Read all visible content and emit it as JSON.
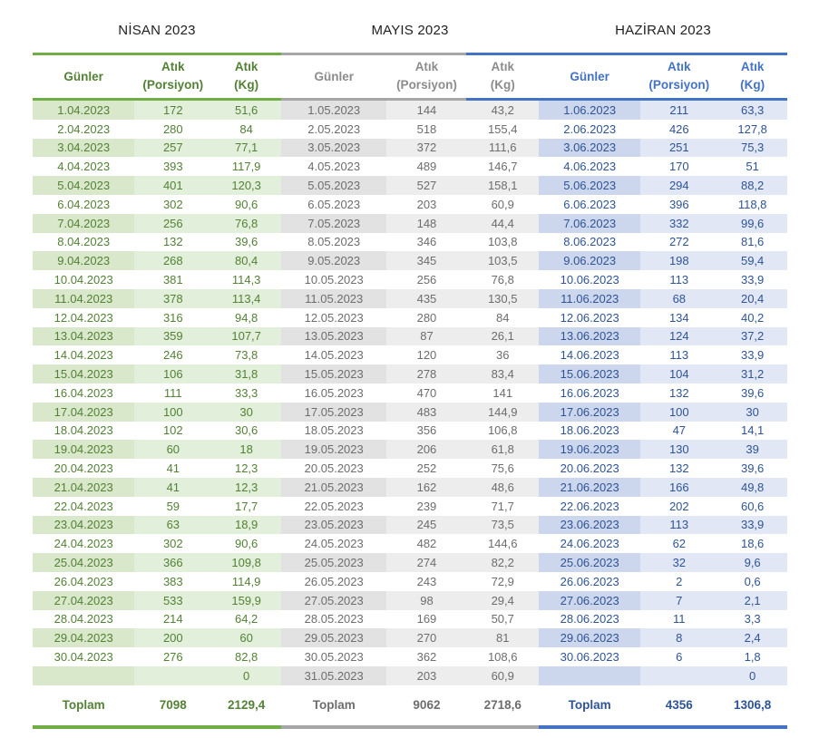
{
  "months": [
    {
      "title": "NİSAN 2023",
      "colors": {
        "border": "#70ad47",
        "header_text": "#538135",
        "data_text": "#538135",
        "stripe_day": "#d9e7cb",
        "stripe_value": "#e2efda"
      },
      "headers": {
        "days": "Günler",
        "waste": "Atık",
        "portion_unit": "(Porsiyon)",
        "kg_unit": "(Kg)"
      },
      "rows": [
        [
          "1.04.2023",
          "172",
          "51,6"
        ],
        [
          "2.04.2023",
          "280",
          "84"
        ],
        [
          "3.04.2023",
          "257",
          "77,1"
        ],
        [
          "4.04.2023",
          "393",
          "117,9"
        ],
        [
          "5.04.2023",
          "401",
          "120,3"
        ],
        [
          "6.04.2023",
          "302",
          "90,6"
        ],
        [
          "7.04.2023",
          "256",
          "76,8"
        ],
        [
          "8.04.2023",
          "132",
          "39,6"
        ],
        [
          "9.04.2023",
          "268",
          "80,4"
        ],
        [
          "10.04.2023",
          "381",
          "114,3"
        ],
        [
          "11.04.2023",
          "378",
          "113,4"
        ],
        [
          "12.04.2023",
          "316",
          "94,8"
        ],
        [
          "13.04.2023",
          "359",
          "107,7"
        ],
        [
          "14.04.2023",
          "246",
          "73,8"
        ],
        [
          "15.04.2023",
          "106",
          "31,8"
        ],
        [
          "16.04.2023",
          "111",
          "33,3"
        ],
        [
          "17.04.2023",
          "100",
          "30"
        ],
        [
          "18.04.2023",
          "102",
          "30,6"
        ],
        [
          "19.04.2023",
          "60",
          "18"
        ],
        [
          "20.04.2023",
          "41",
          "12,3"
        ],
        [
          "21.04.2023",
          "41",
          "12,3"
        ],
        [
          "22.04.2023",
          "59",
          "17,7"
        ],
        [
          "23.04.2023",
          "63",
          "18,9"
        ],
        [
          "24.04.2023",
          "302",
          "90,6"
        ],
        [
          "25.04.2023",
          "366",
          "109,8"
        ],
        [
          "26.04.2023",
          "383",
          "114,9"
        ],
        [
          "27.04.2023",
          "533",
          "159,9"
        ],
        [
          "28.04.2023",
          "214",
          "64,2"
        ],
        [
          "29.04.2023",
          "200",
          "60"
        ],
        [
          "30.04.2023",
          "276",
          "82,8"
        ],
        [
          "",
          "",
          "0"
        ]
      ],
      "total": {
        "label": "Toplam",
        "portion": "7098",
        "kg": "2129,4"
      }
    },
    {
      "title": "MAYIS 2023",
      "colors": {
        "border": "#a6a6a6",
        "header_text": "#8c8c8c",
        "data_text": "#6d6d6d",
        "stripe_day": "#e2e2e2",
        "stripe_value": "#ededed"
      },
      "headers": {
        "days": "Günler",
        "waste": "Atık",
        "portion_unit": "(Porsiyon)",
        "kg_unit": "(Kg)"
      },
      "rows": [
        [
          "1.05.2023",
          "144",
          "43,2"
        ],
        [
          "2.05.2023",
          "518",
          "155,4"
        ],
        [
          "3.05.2023",
          "372",
          "111,6"
        ],
        [
          "4.05.2023",
          "489",
          "146,7"
        ],
        [
          "5.05.2023",
          "527",
          "158,1"
        ],
        [
          "6.05.2023",
          "203",
          "60,9"
        ],
        [
          "7.05.2023",
          "148",
          "44,4"
        ],
        [
          "8.05.2023",
          "346",
          "103,8"
        ],
        [
          "9.05.2023",
          "345",
          "103,5"
        ],
        [
          "10.05.2023",
          "256",
          "76,8"
        ],
        [
          "11.05.2023",
          "435",
          "130,5"
        ],
        [
          "12.05.2023",
          "280",
          "84"
        ],
        [
          "13.05.2023",
          "87",
          "26,1"
        ],
        [
          "14.05.2023",
          "120",
          "36"
        ],
        [
          "15.05.2023",
          "278",
          "83,4"
        ],
        [
          "16.05.2023",
          "470",
          "141"
        ],
        [
          "17.05.2023",
          "483",
          "144,9"
        ],
        [
          "18.05.2023",
          "356",
          "106,8"
        ],
        [
          "19.05.2023",
          "206",
          "61,8"
        ],
        [
          "20.05.2023",
          "252",
          "75,6"
        ],
        [
          "21.05.2023",
          "162",
          "48,6"
        ],
        [
          "22.05.2023",
          "239",
          "71,7"
        ],
        [
          "23.05.2023",
          "245",
          "73,5"
        ],
        [
          "24.05.2023",
          "482",
          "144,6"
        ],
        [
          "25.05.2023",
          "274",
          "82,2"
        ],
        [
          "26.05.2023",
          "243",
          "72,9"
        ],
        [
          "27.05.2023",
          "98",
          "29,4"
        ],
        [
          "28.05.2023",
          "169",
          "50,7"
        ],
        [
          "29.05.2023",
          "270",
          "81"
        ],
        [
          "30.05.2023",
          "362",
          "108,6"
        ],
        [
          "31.05.2023",
          "203",
          "60,9"
        ]
      ],
      "total": {
        "label": "Toplam",
        "portion": "9062",
        "kg": "2718,6"
      }
    },
    {
      "title": "HAZİRAN 2023",
      "colors": {
        "border": "#4472c4",
        "header_text": "#4472c4",
        "data_text": "#2f5496",
        "stripe_day": "#ccd6ec",
        "stripe_value": "#e1e7f5"
      },
      "headers": {
        "days": "Günler",
        "waste": "Atık",
        "portion_unit": "(Porsiyon)",
        "kg_unit": "(Kg)"
      },
      "rows": [
        [
          "1.06.2023",
          "211",
          "63,3"
        ],
        [
          "2.06.2023",
          "426",
          "127,8"
        ],
        [
          "3.06.2023",
          "251",
          "75,3"
        ],
        [
          "4.06.2023",
          "170",
          "51"
        ],
        [
          "5.06.2023",
          "294",
          "88,2"
        ],
        [
          "6.06.2023",
          "396",
          "118,8"
        ],
        [
          "7.06.2023",
          "332",
          "99,6"
        ],
        [
          "8.06.2023",
          "272",
          "81,6"
        ],
        [
          "9.06.2023",
          "198",
          "59,4"
        ],
        [
          "10.06.2023",
          "113",
          "33,9"
        ],
        [
          "11.06.2023",
          "68",
          "20,4"
        ],
        [
          "12.06.2023",
          "134",
          "40,2"
        ],
        [
          "13.06.2023",
          "124",
          "37,2"
        ],
        [
          "14.06.2023",
          "113",
          "33,9"
        ],
        [
          "15.06.2023",
          "104",
          "31,2"
        ],
        [
          "16.06.2023",
          "132",
          "39,6"
        ],
        [
          "17.06.2023",
          "100",
          "30"
        ],
        [
          "18.06.2023",
          "47",
          "14,1"
        ],
        [
          "19.06.2023",
          "130",
          "39"
        ],
        [
          "20.06.2023",
          "132",
          "39,6"
        ],
        [
          "21.06.2023",
          "166",
          "49,8"
        ],
        [
          "22.06.2023",
          "202",
          "60,6"
        ],
        [
          "23.06.2023",
          "113",
          "33,9"
        ],
        [
          "24.06.2023",
          "62",
          "18,6"
        ],
        [
          "25.06.2023",
          "32",
          "9,6"
        ],
        [
          "26.06.2023",
          "2",
          "0,6"
        ],
        [
          "27.06.2023",
          "7",
          "2,1"
        ],
        [
          "28.06.2023",
          "11",
          "3,3"
        ],
        [
          "29.06.2023",
          "8",
          "2,4"
        ],
        [
          "30.06.2023",
          "6",
          "1,8"
        ],
        [
          "",
          "",
          "0"
        ]
      ],
      "total": {
        "label": "Toplam",
        "portion": "4356",
        "kg": "1306,8"
      }
    }
  ]
}
